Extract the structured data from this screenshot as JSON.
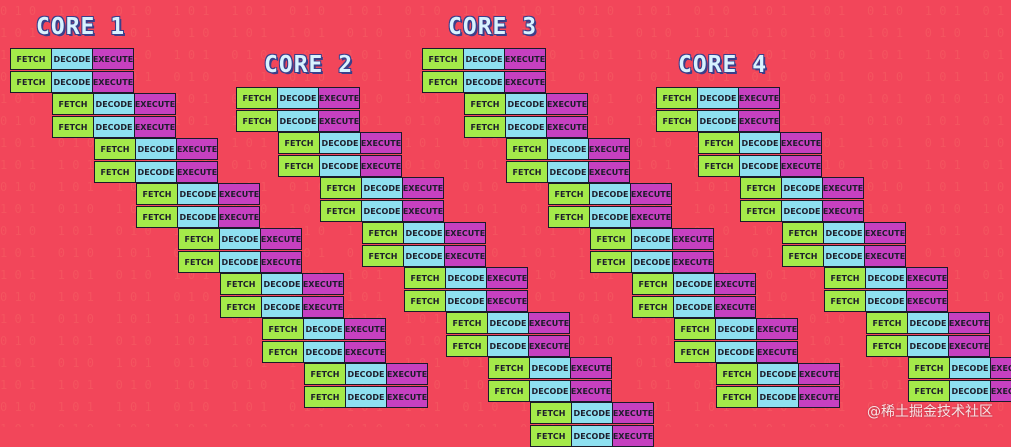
{
  "cores": [
    {
      "title": "CORE 1"
    },
    {
      "title": "CORE 2"
    },
    {
      "title": "CORE 3"
    },
    {
      "title": "CORE 4"
    }
  ],
  "stages": [
    "FETCH",
    "DECODE",
    "EXECUTE"
  ],
  "stage_colors": {
    "fetch": "#a4ea4a",
    "decode": "#8ee0f0",
    "execute": "#c640c0"
  },
  "background_color": "#f2465a",
  "background_text": "101010",
  "watermark": "@稀土掘金技术社区"
}
